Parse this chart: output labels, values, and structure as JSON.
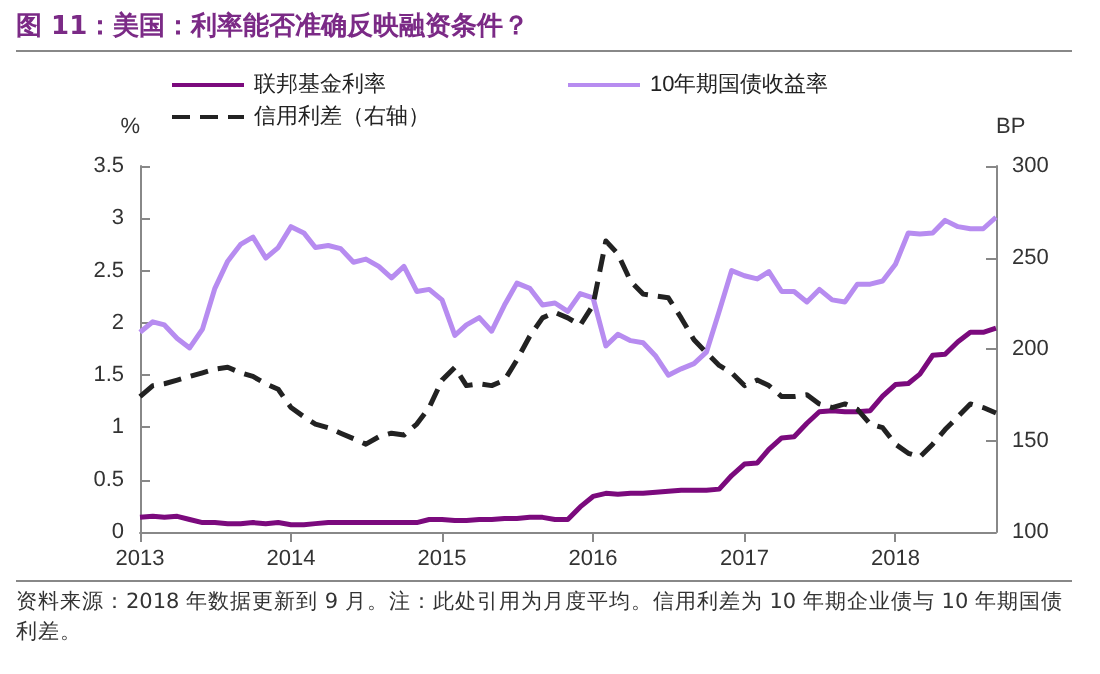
{
  "chart_data": {
    "type": "line",
    "title": "图 11：美国：利率能否准确反映融资条件？",
    "ylabel": "%",
    "y2label": "BP",
    "annotations": [
      "资料来源：2018 年数据更新到 9 月。注：此处引用为月度平均。信用利差为 10 年期企业债与 10 年期国债利差。"
    ],
    "x": [
      "2013-01",
      "2013-02",
      "2013-03",
      "2013-04",
      "2013-05",
      "2013-06",
      "2013-07",
      "2013-08",
      "2013-09",
      "2013-10",
      "2013-11",
      "2013-12",
      "2014-01",
      "2014-02",
      "2014-03",
      "2014-04",
      "2014-05",
      "2014-06",
      "2014-07",
      "2014-08",
      "2014-09",
      "2014-10",
      "2014-11",
      "2014-12",
      "2015-01",
      "2015-02",
      "2015-03",
      "2015-04",
      "2015-05",
      "2015-06",
      "2015-07",
      "2015-08",
      "2015-09",
      "2015-10",
      "2015-11",
      "2015-12",
      "2016-01",
      "2016-02",
      "2016-03",
      "2016-04",
      "2016-05",
      "2016-06",
      "2016-07",
      "2016-08",
      "2016-09",
      "2016-10",
      "2016-11",
      "2016-12",
      "2017-01",
      "2017-02",
      "2017-03",
      "2017-04",
      "2017-05",
      "2017-06",
      "2017-07",
      "2017-08",
      "2017-09",
      "2017-10",
      "2017-11",
      "2017-12",
      "2018-01",
      "2018-02",
      "2018-03",
      "2018-04",
      "2018-05",
      "2018-06",
      "2018-07",
      "2018-08",
      "2018-09"
    ],
    "series": [
      {
        "name": "联邦基金利率",
        "color": "#7b0a7d",
        "values": [
          0.14,
          0.15,
          0.14,
          0.15,
          0.12,
          0.09,
          0.09,
          0.08,
          0.08,
          0.09,
          0.08,
          0.09,
          0.07,
          0.07,
          0.08,
          0.09,
          0.09,
          0.09,
          0.09,
          0.09,
          0.09,
          0.09,
          0.09,
          0.12,
          0.12,
          0.11,
          0.11,
          0.12,
          0.12,
          0.13,
          0.13,
          0.14,
          0.14,
          0.12,
          0.12,
          0.24,
          0.34,
          0.37,
          0.36,
          0.37,
          0.37,
          0.38,
          0.39,
          0.4,
          0.4,
          0.4,
          0.41,
          0.54,
          0.65,
          0.66,
          0.79,
          0.9,
          0.91,
          1.04,
          1.15,
          1.16,
          1.15,
          1.15,
          1.16,
          1.3,
          1.41,
          1.42,
          1.51,
          1.69,
          1.7,
          1.82,
          1.91,
          1.91,
          1.95
        ]
      },
      {
        "name": "10年期国债收益率",
        "color": "#b78cf0",
        "values": [
          1.91,
          2.01,
          1.98,
          1.85,
          1.76,
          1.94,
          2.33,
          2.59,
          2.75,
          2.82,
          2.62,
          2.72,
          2.92,
          2.86,
          2.72,
          2.74,
          2.71,
          2.58,
          2.61,
          2.54,
          2.43,
          2.54,
          2.3,
          2.32,
          2.22,
          1.88,
          1.98,
          2.05,
          1.92,
          2.17,
          2.38,
          2.33,
          2.17,
          2.19,
          2.11,
          2.28,
          2.24,
          1.78,
          1.89,
          1.83,
          1.81,
          1.68,
          1.5,
          1.56,
          1.61,
          1.72,
          2.11,
          2.5,
          2.45,
          2.42,
          2.49,
          2.3,
          2.3,
          2.2,
          2.32,
          2.22,
          2.2,
          2.37,
          2.37,
          2.4,
          2.56,
          2.86,
          2.85,
          2.86,
          2.98,
          2.92,
          2.9,
          2.9,
          3.01
        ]
      },
      {
        "name": "信用利差（右轴）",
        "color": "#222222",
        "axis": "y2",
        "line_style": "dashed",
        "values": [
          174,
          180,
          181,
          183,
          185,
          187,
          189,
          190,
          187,
          185,
          181,
          178,
          168,
          163,
          159,
          157,
          154,
          151,
          148,
          152,
          154,
          153,
          159,
          168,
          183,
          190,
          180,
          181,
          180,
          183,
          194,
          207,
          217,
          220,
          217,
          213,
          224,
          259,
          252,
          237,
          230,
          229,
          228,
          217,
          205,
          198,
          191,
          187,
          180,
          183,
          180,
          174,
          174,
          175,
          170,
          168,
          170,
          167,
          159,
          157,
          148,
          143,
          141,
          148,
          156,
          163,
          170,
          168,
          165
        ]
      }
    ],
    "xlim": [
      "2013-01",
      "2018-09"
    ],
    "xticks": [
      "2013",
      "2014",
      "2015",
      "2016",
      "2017",
      "2018"
    ],
    "ylim": [
      0,
      3.5
    ],
    "yticks": [
      0,
      0.5,
      1,
      1.5,
      2,
      2.5,
      3,
      3.5
    ],
    "y2lim": [
      100,
      300
    ],
    "y2ticks": [
      100,
      150,
      200,
      250,
      300
    ],
    "grid": false,
    "legend": "top",
    "marker": "none",
    "line_style": "solid"
  }
}
